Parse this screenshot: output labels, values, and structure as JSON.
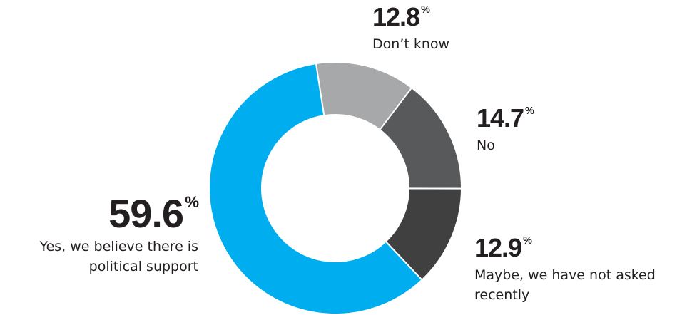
{
  "chart_data": {
    "type": "donut",
    "categories": [
      "Don’t know",
      "No",
      "Maybe, we have not asked recently",
      "Yes, we believe there is political support"
    ],
    "values": [
      12.8,
      14.7,
      12.9,
      59.6
    ],
    "unit": "%",
    "colors": [
      "#a7a8aa",
      "#58595b",
      "#404041",
      "#00aeef"
    ]
  }
}
